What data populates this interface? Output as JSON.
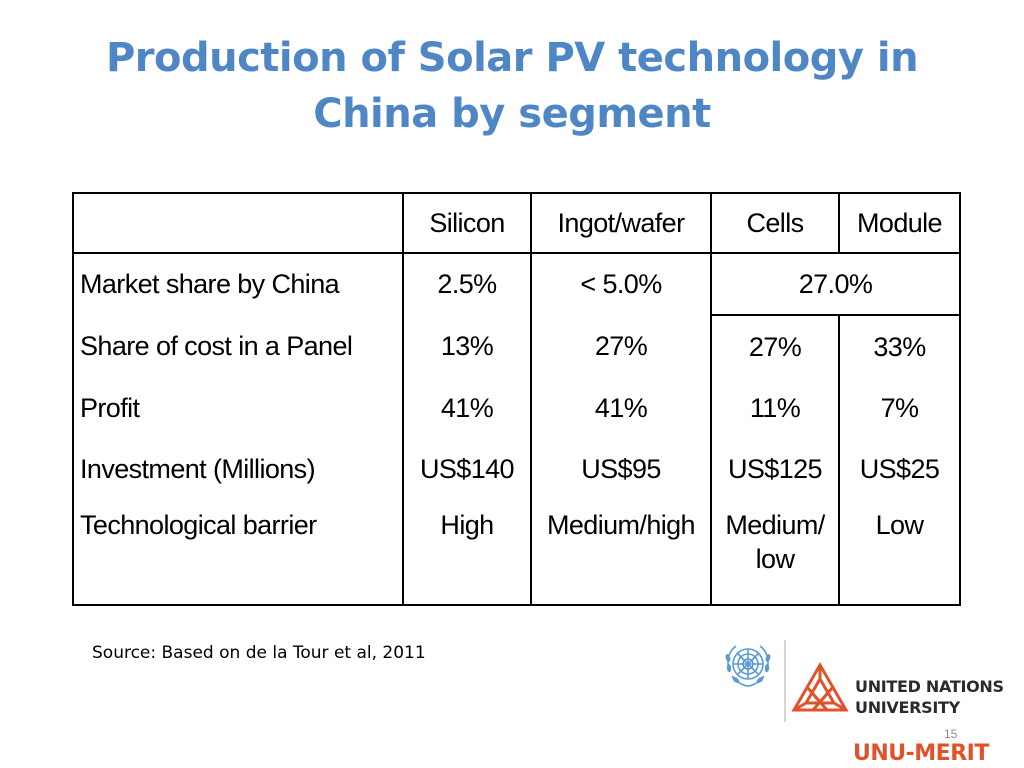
{
  "slide": {
    "title_line1": "Production of Solar PV technology in",
    "title_line2": "China by segment",
    "source": "Source: Based on de la Tour et al, 2011",
    "page_number": "15"
  },
  "table": {
    "headers": [
      "",
      "Silicon",
      "Ingot/wafer",
      "Cells",
      "Module"
    ],
    "rows": [
      {
        "label": "Market share by China",
        "silicon": "2.5%",
        "ingot_wafer": "< 5.0%",
        "cells_module_merged": "27.0%"
      },
      {
        "label": "Share of cost in a Panel",
        "silicon": "13%",
        "ingot_wafer": "27%",
        "cells": "27%",
        "module": "33%"
      },
      {
        "label": "Profit",
        "silicon": "41%",
        "ingot_wafer": "41%",
        "cells": "11%",
        "module": "7%"
      },
      {
        "label": "Investment (Millions)",
        "silicon": "US$140",
        "ingot_wafer": "US$95",
        "cells": "US$125",
        "module": "US$25"
      },
      {
        "label": "Technological barrier",
        "silicon": "High",
        "ingot_wafer": "Medium/high",
        "cells_line1": "Medium/",
        "cells_line2": "low",
        "module": "Low"
      }
    ]
  },
  "logos": {
    "un_emblem_icon": "un-emblem-icon",
    "unu_logo_icon": "unu-logo-icon",
    "unu_line1": "UNITED NATIONS",
    "unu_line2": "UNIVERSITY",
    "merit": "UNU-MERIT",
    "brand_color": "#E0532A",
    "title_color": "#4F86C6",
    "emblem_color": "#5B9BD5"
  }
}
